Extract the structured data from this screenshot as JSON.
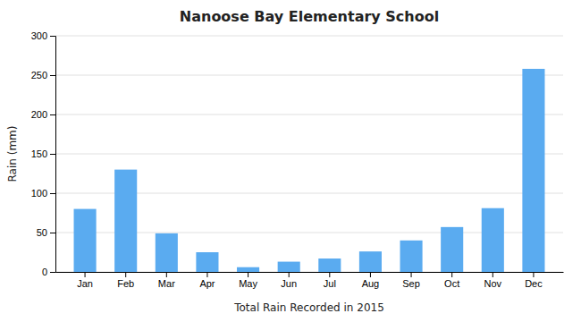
{
  "chart_data": {
    "type": "bar",
    "title": "Nanoose Bay Elementary School",
    "xlabel": "Total Rain Recorded in 2015",
    "ylabel": "Rain (mm)",
    "categories": [
      "Jan",
      "Feb",
      "Mar",
      "Apr",
      "May",
      "Jun",
      "Jul",
      "Aug",
      "Sep",
      "Oct",
      "Nov",
      "Dec"
    ],
    "values": [
      80,
      130,
      49,
      25,
      6,
      13,
      17,
      26,
      40,
      57,
      81,
      258
    ],
    "color": "#5aabf0",
    "ylim": [
      0,
      300
    ],
    "yticks": [
      0,
      50,
      100,
      150,
      200,
      250,
      300
    ],
    "grid": true
  }
}
